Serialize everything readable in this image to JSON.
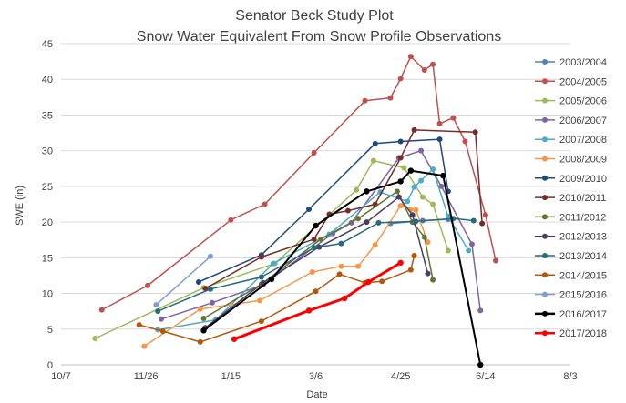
{
  "chart_data": {
    "type": "line",
    "title": "Senator Beck Study Plot",
    "subtitle": "Snow Water Equivalent From Snow Profile Observations",
    "xlabel": "Date",
    "ylabel": "SWE (in)",
    "x_unit": "date (MM-DD, seasons aligned Oct-Aug)",
    "xlim": [
      "10-07",
      "08-03"
    ],
    "x_ticks": [
      {
        "label": "10/7",
        "value": "10-07"
      },
      {
        "label": "11/26",
        "value": "11-26"
      },
      {
        "label": "1/15",
        "value": "01-15"
      },
      {
        "label": "3/6",
        "value": "03-06"
      },
      {
        "label": "4/25",
        "value": "04-25"
      },
      {
        "label": "6/14",
        "value": "06-14"
      },
      {
        "label": "8/3",
        "value": "08-03"
      }
    ],
    "ylim": [
      0,
      45
    ],
    "y_ticks": [
      0,
      5,
      10,
      15,
      20,
      25,
      30,
      35,
      40,
      45
    ],
    "grid": {
      "horizontal": true,
      "vertical": false
    },
    "legend_position": "right",
    "series": [
      {
        "name": "2003/2004",
        "color": "#4f81bd",
        "highlight": false,
        "points": [
          {
            "x": "04-19",
            "y": 19.8
          },
          {
            "x": "05-08",
            "y": 20.2
          },
          {
            "x": "05-23",
            "y": 20.4
          }
        ]
      },
      {
        "name": "2004/2005",
        "color": "#c0504d",
        "highlight": false,
        "points": [
          {
            "x": "10-31",
            "y": 7.7
          },
          {
            "x": "11-27",
            "y": 11.1
          },
          {
            "x": "01-15",
            "y": 20.3
          },
          {
            "x": "02-04",
            "y": 22.5
          },
          {
            "x": "03-05",
            "y": 29.7
          },
          {
            "x": "04-04",
            "y": 37.0
          },
          {
            "x": "04-19",
            "y": 37.4
          },
          {
            "x": "04-25",
            "y": 40.1
          },
          {
            "x": "05-01",
            "y": 43.2
          },
          {
            "x": "05-09",
            "y": 41.3
          },
          {
            "x": "05-14",
            "y": 42.1
          },
          {
            "x": "05-18",
            "y": 33.8
          },
          {
            "x": "05-26",
            "y": 34.6
          },
          {
            "x": "06-02",
            "y": 31.3
          },
          {
            "x": "06-14",
            "y": 21.0
          },
          {
            "x": "06-20",
            "y": 14.6
          }
        ]
      },
      {
        "name": "2005/2006",
        "color": "#9bbb59",
        "highlight": false,
        "points": [
          {
            "x": "10-27",
            "y": 3.7
          },
          {
            "x": "12-30",
            "y": 10.8
          },
          {
            "x": "02-10",
            "y": 14.2
          },
          {
            "x": "03-30",
            "y": 24.5
          },
          {
            "x": "04-09",
            "y": 28.6
          },
          {
            "x": "04-27",
            "y": 27.6
          },
          {
            "x": "05-08",
            "y": 23.5
          },
          {
            "x": "05-14",
            "y": 22.5
          },
          {
            "x": "05-23",
            "y": 16.0
          }
        ]
      },
      {
        "name": "2006/2007",
        "color": "#8064a2",
        "highlight": false,
        "points": [
          {
            "x": "12-05",
            "y": 6.4
          },
          {
            "x": "01-04",
            "y": 8.7
          },
          {
            "x": "02-03",
            "y": 11.2
          },
          {
            "x": "03-16",
            "y": 18.4
          },
          {
            "x": "03-27",
            "y": 19.9
          },
          {
            "x": "04-24",
            "y": 29.0
          },
          {
            "x": "05-07",
            "y": 30.0
          },
          {
            "x": "05-19",
            "y": 25.0
          },
          {
            "x": "06-06",
            "y": 16.9
          },
          {
            "x": "06-11",
            "y": 7.6
          }
        ]
      },
      {
        "name": "2007/2008",
        "color": "#4bacc6",
        "highlight": false,
        "points": [
          {
            "x": "12-03",
            "y": 4.9
          },
          {
            "x": "01-06",
            "y": 6.3
          },
          {
            "x": "02-09",
            "y": 14.2
          },
          {
            "x": "03-14",
            "y": 18.3
          },
          {
            "x": "04-13",
            "y": 24.2
          },
          {
            "x": "04-29",
            "y": 22.9
          },
          {
            "x": "05-03",
            "y": 24.9
          },
          {
            "x": "05-07",
            "y": 25.8
          },
          {
            "x": "05-14",
            "y": 27.4
          },
          {
            "x": "05-23",
            "y": 20.8
          },
          {
            "x": "06-04",
            "y": 16.0
          }
        ]
      },
      {
        "name": "2008/2009",
        "color": "#f79646",
        "highlight": false,
        "points": [
          {
            "x": "11-25",
            "y": 2.6
          },
          {
            "x": "12-28",
            "y": 7.8
          },
          {
            "x": "02-01",
            "y": 9.0
          },
          {
            "x": "03-04",
            "y": 13.0
          },
          {
            "x": "03-21",
            "y": 13.8
          },
          {
            "x": "03-31",
            "y": 13.8
          },
          {
            "x": "04-10",
            "y": 16.8
          },
          {
            "x": "04-25",
            "y": 22.3
          },
          {
            "x": "05-01",
            "y": 21.8
          },
          {
            "x": "05-04",
            "y": 21.7
          },
          {
            "x": "05-11",
            "y": 17.2
          }
        ]
      },
      {
        "name": "2009/2010",
        "color": "#1f497d",
        "highlight": false,
        "points": [
          {
            "x": "12-27",
            "y": 11.6
          },
          {
            "x": "02-02",
            "y": 15.4
          },
          {
            "x": "03-02",
            "y": 21.8
          },
          {
            "x": "04-10",
            "y": 31.0
          },
          {
            "x": "04-25",
            "y": 31.3
          },
          {
            "x": "05-18",
            "y": 31.6
          },
          {
            "x": "05-23",
            "y": 24.3
          }
        ]
      },
      {
        "name": "2010/2011",
        "color": "#772c2a",
        "highlight": false,
        "points": [
          {
            "x": "12-31",
            "y": 10.7
          },
          {
            "x": "02-02",
            "y": 15.1
          },
          {
            "x": "03-05",
            "y": 17.6
          },
          {
            "x": "03-14",
            "y": 21.1
          },
          {
            "x": "03-25",
            "y": 21.6
          },
          {
            "x": "04-10",
            "y": 22.5
          },
          {
            "x": "04-25",
            "y": 29.0
          },
          {
            "x": "05-03",
            "y": 32.9
          },
          {
            "x": "06-08",
            "y": 32.6
          },
          {
            "x": "06-12",
            "y": 19.8
          }
        ]
      },
      {
        "name": "2011/2012",
        "color": "#5f7530",
        "highlight": false,
        "points": [
          {
            "x": "12-30",
            "y": 6.5
          },
          {
            "x": "02-02",
            "y": 11.3
          },
          {
            "x": "03-09",
            "y": 17.6
          },
          {
            "x": "03-31",
            "y": 20.5
          },
          {
            "x": "04-23",
            "y": 24.3
          },
          {
            "x": "05-02",
            "y": 20.0
          },
          {
            "x": "05-09",
            "y": 17.9
          },
          {
            "x": "05-14",
            "y": 11.9
          }
        ]
      },
      {
        "name": "2012/2013",
        "color": "#4d3b62",
        "highlight": false,
        "points": [
          {
            "x": "12-31",
            "y": 5.2
          },
          {
            "x": "02-03",
            "y": 11.5
          },
          {
            "x": "03-08",
            "y": 16.5
          },
          {
            "x": "04-05",
            "y": 20.0
          },
          {
            "x": "04-24",
            "y": 23.5
          },
          {
            "x": "05-02",
            "y": 21.0
          },
          {
            "x": "05-11",
            "y": 12.8
          }
        ]
      },
      {
        "name": "2013/2014",
        "color": "#276a7c",
        "highlight": false,
        "points": [
          {
            "x": "12-03",
            "y": 7.5
          },
          {
            "x": "01-03",
            "y": 10.6
          },
          {
            "x": "02-02",
            "y": 12.3
          },
          {
            "x": "03-05",
            "y": 16.4
          },
          {
            "x": "03-21",
            "y": 17.0
          },
          {
            "x": "04-12",
            "y": 19.9
          },
          {
            "x": "05-04",
            "y": 20.1
          },
          {
            "x": "05-26",
            "y": 20.5
          },
          {
            "x": "06-07",
            "y": 20.2
          }
        ]
      },
      {
        "name": "2014/2015",
        "color": "#b65708",
        "highlight": false,
        "points": [
          {
            "x": "11-22",
            "y": 5.6
          },
          {
            "x": "12-06",
            "y": 4.7
          },
          {
            "x": "12-28",
            "y": 3.2
          },
          {
            "x": "02-02",
            "y": 6.1
          },
          {
            "x": "03-06",
            "y": 10.3
          },
          {
            "x": "03-20",
            "y": 12.7
          },
          {
            "x": "04-04",
            "y": 11.5
          },
          {
            "x": "04-14",
            "y": 11.7
          },
          {
            "x": "05-01",
            "y": 13.3
          },
          {
            "x": "05-03",
            "y": 15.3
          }
        ]
      },
      {
        "name": "2015/2016",
        "color": "#7f9fd0",
        "highlight": false,
        "points": [
          {
            "x": "12-02",
            "y": 8.4
          },
          {
            "x": "01-03",
            "y": 15.2
          }
        ]
      },
      {
        "name": "2016/2017",
        "color": "#000000",
        "highlight": true,
        "points": [
          {
            "x": "12-30",
            "y": 4.8
          },
          {
            "x": "02-08",
            "y": 12.0
          },
          {
            "x": "03-06",
            "y": 19.5
          },
          {
            "x": "04-05",
            "y": 24.3
          },
          {
            "x": "04-25",
            "y": 25.7
          },
          {
            "x": "05-01",
            "y": 27.2
          },
          {
            "x": "05-20",
            "y": 26.5
          },
          {
            "x": "06-11",
            "y": 0.0
          }
        ]
      },
      {
        "name": "2017/2018",
        "color": "#ff0000",
        "highlight": true,
        "points": [
          {
            "x": "01-17",
            "y": 3.6
          },
          {
            "x": "03-02",
            "y": 7.6
          },
          {
            "x": "03-23",
            "y": 9.3
          },
          {
            "x": "04-06",
            "y": 11.6
          },
          {
            "x": "04-25",
            "y": 14.3
          }
        ]
      }
    ]
  }
}
